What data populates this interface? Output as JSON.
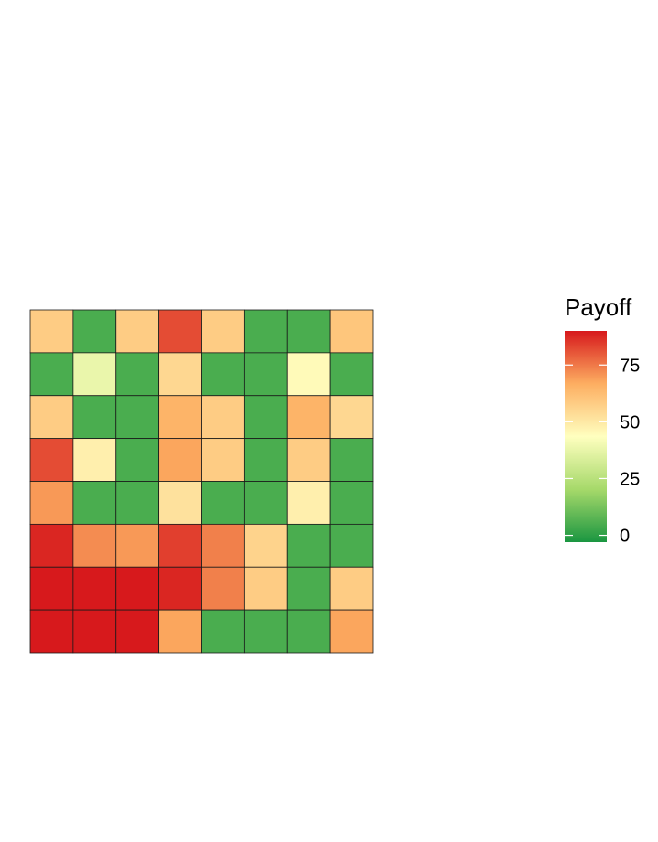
{
  "chart_data": {
    "type": "heatmap",
    "title": "",
    "xlabel": "",
    "ylabel": "",
    "rows": 8,
    "cols": 8,
    "values": [
      [
        58,
        5,
        58,
        82,
        58,
        5,
        5,
        60
      ],
      [
        5,
        38,
        5,
        55,
        5,
        5,
        45,
        5
      ],
      [
        58,
        5,
        5,
        65,
        58,
        5,
        65,
        55
      ],
      [
        82,
        48,
        5,
        68,
        58,
        5,
        58,
        5
      ],
      [
        70,
        5,
        5,
        52,
        5,
        5,
        48,
        5
      ],
      [
        88,
        72,
        70,
        84,
        74,
        56,
        5,
        5
      ],
      [
        93,
        93,
        92,
        88,
        74,
        58,
        5,
        58
      ],
      [
        92,
        92,
        92,
        68,
        5,
        5,
        5,
        68
      ]
    ],
    "legend": {
      "title": "Payoff",
      "ticks": [
        0,
        25,
        50,
        75
      ],
      "range": [
        -3,
        90
      ],
      "placement": "right"
    },
    "colors": {
      "low": "#1a9641",
      "mid_low": "#a6d96a",
      "mid": "#ffffbf",
      "mid_high": "#fdae61",
      "high": "#d7191c",
      "grid_line": "#1a1a1a"
    }
  }
}
